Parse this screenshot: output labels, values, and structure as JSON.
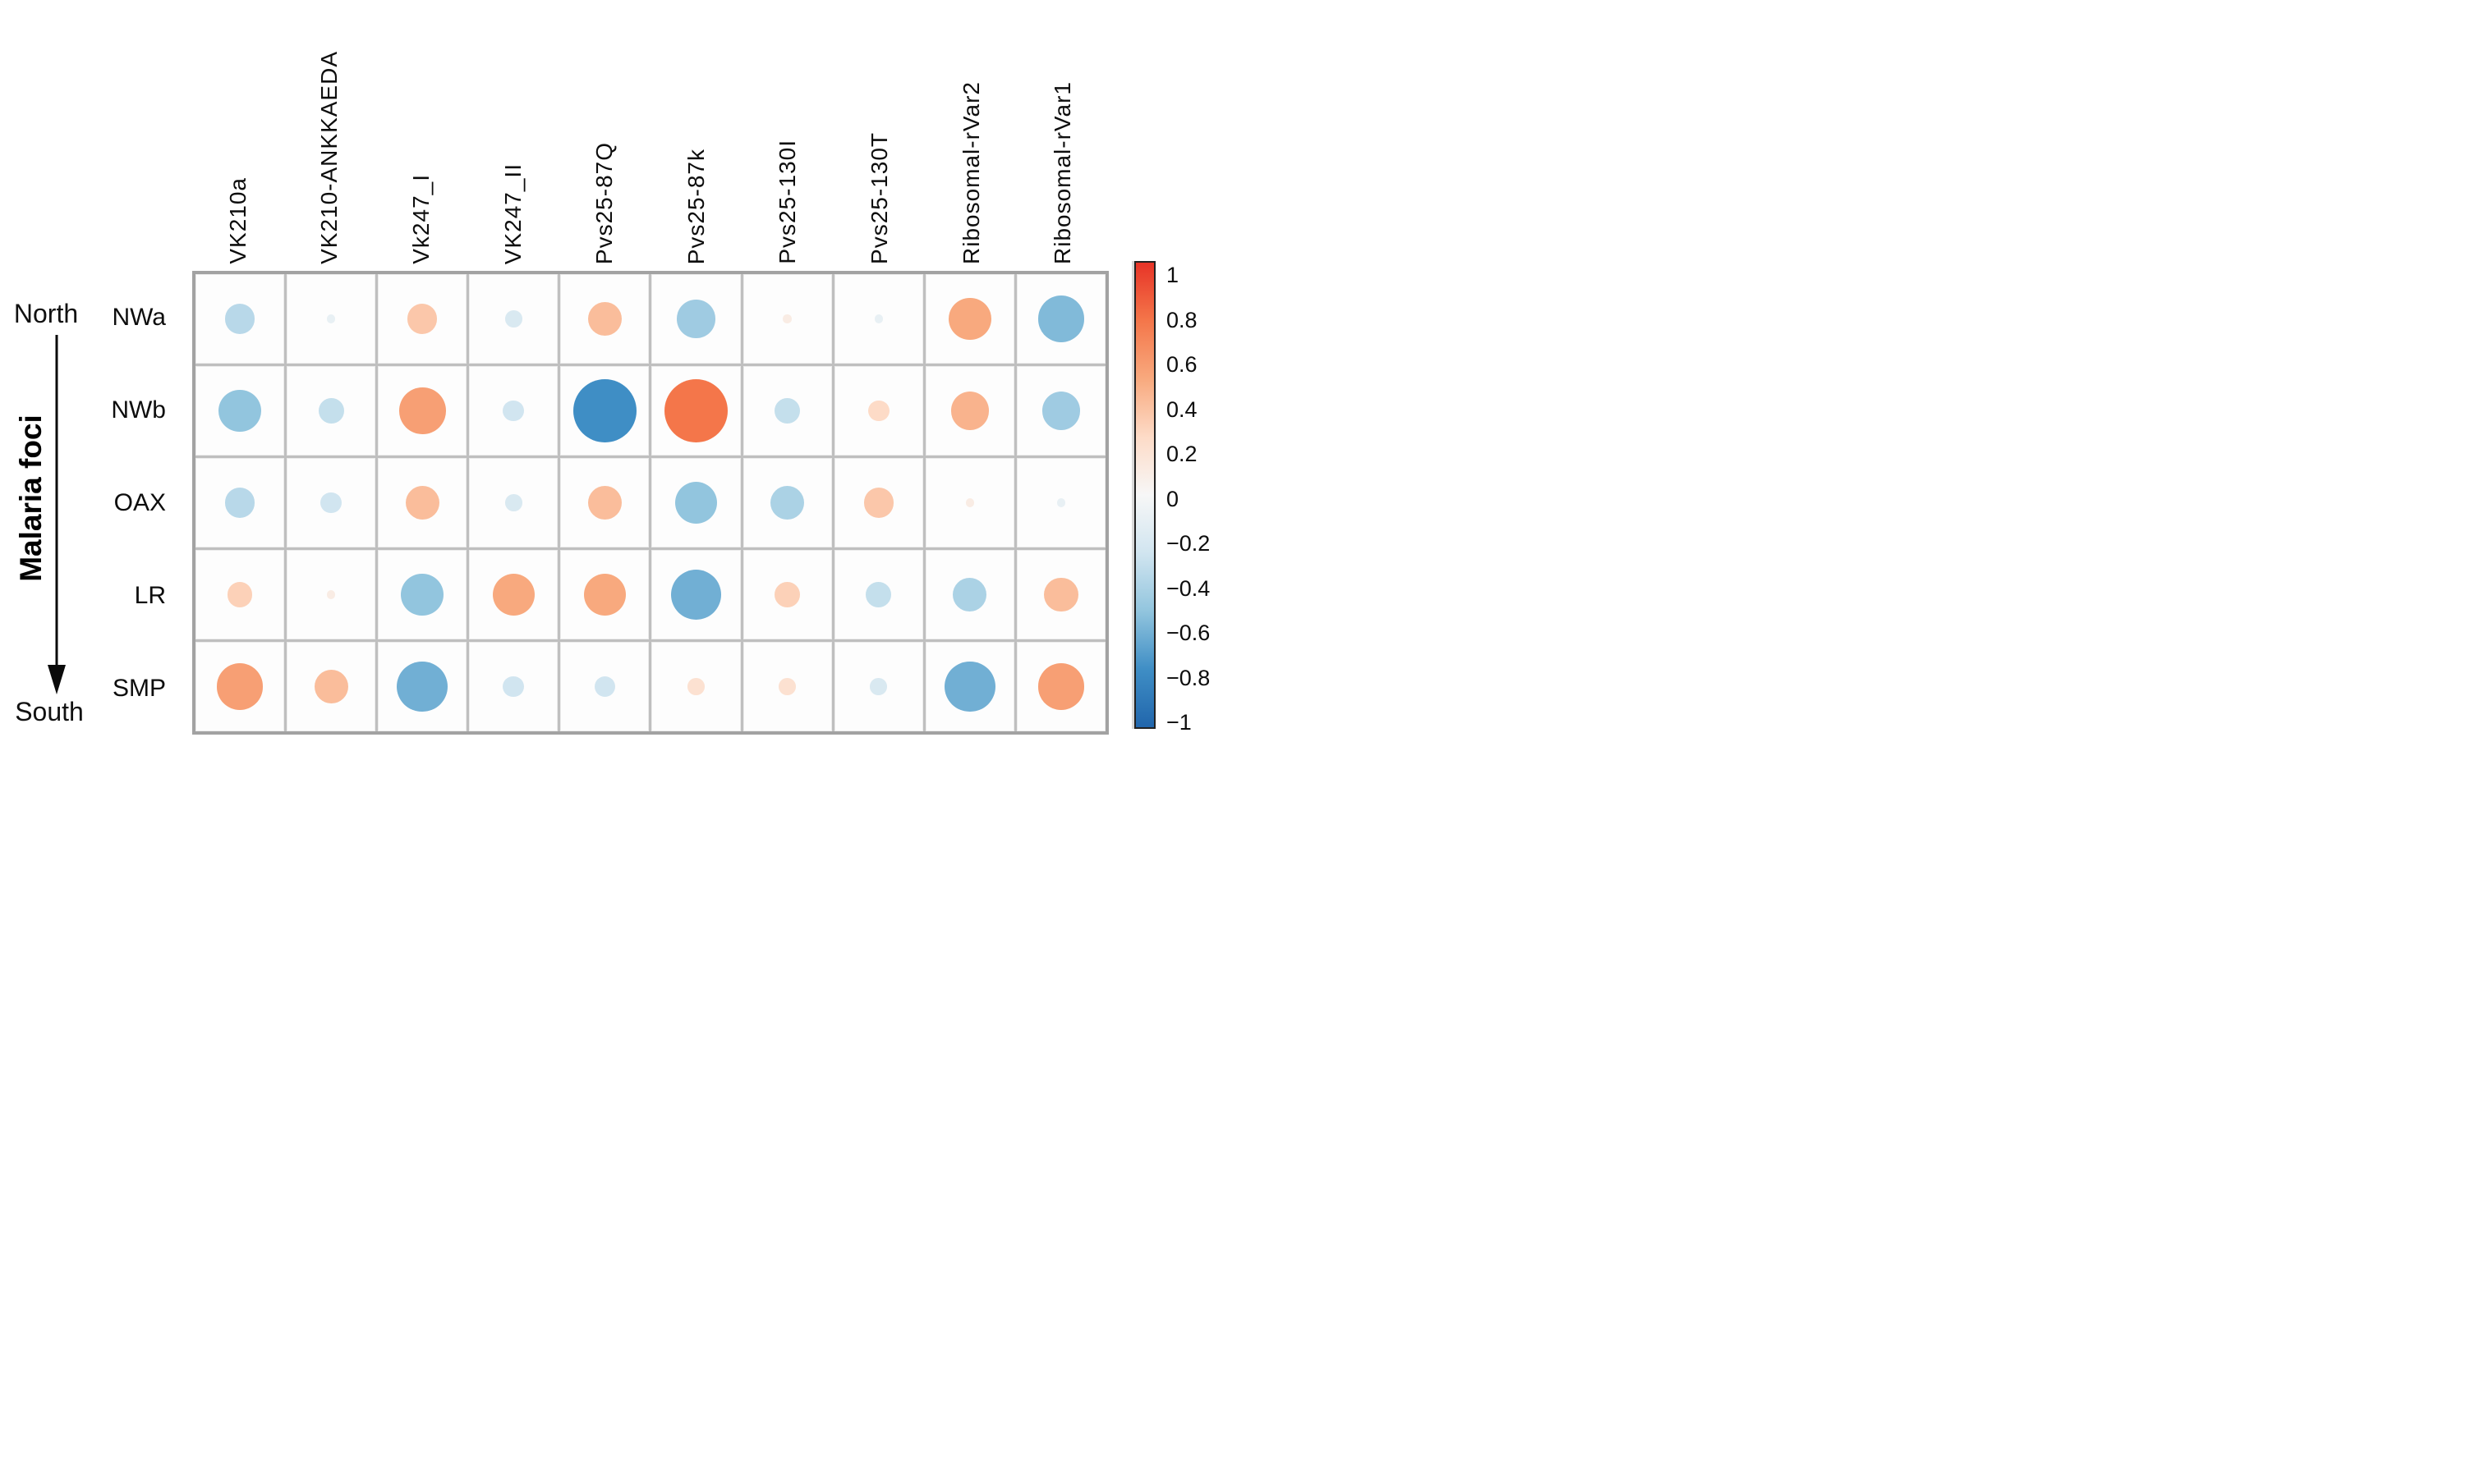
{
  "figure": {
    "left_axis": {
      "top_label": "North",
      "bottom_label": "South",
      "axis_title": "Malaria foci",
      "arrow_direction": "down"
    }
  },
  "chart_data": {
    "type": "heatmap",
    "style": "correlation bubble matrix (circle size and color encode correlation)",
    "rows": [
      "NWa",
      "NWb",
      "OAX",
      "LR",
      "SMP"
    ],
    "columns": [
      "VK210a",
      "VK210-ANKKAEDA",
      "Vk247_I",
      "VK247_II",
      "Pvs25-87Q",
      "Pvs25-87k",
      "Pvs25-130I",
      "Pvs25-130T",
      "Ribosomal-rVar2",
      "Ribosomal-rVar1"
    ],
    "values": [
      [
        -0.35,
        -0.1,
        0.35,
        -0.2,
        0.4,
        -0.45,
        0.1,
        -0.1,
        0.5,
        -0.55
      ],
      [
        -0.5,
        -0.3,
        0.55,
        -0.25,
        -0.75,
        0.75,
        -0.3,
        0.25,
        0.45,
        -0.45
      ],
      [
        -0.35,
        -0.25,
        0.4,
        -0.2,
        0.4,
        -0.5,
        -0.4,
        0.35,
        0.1,
        -0.1
      ],
      [
        0.3,
        0.1,
        -0.5,
        0.5,
        0.5,
        -0.6,
        0.3,
        -0.3,
        -0.4,
        0.4
      ],
      [
        0.55,
        0.4,
        -0.6,
        -0.25,
        -0.25,
        0.2,
        0.2,
        -0.2,
        -0.6,
        0.55
      ]
    ],
    "value_range": [
      -1,
      1
    ],
    "grid_on": true,
    "legend_position": "right",
    "palette_stops": [
      [
        -1.0,
        "#2166ac"
      ],
      [
        -0.75,
        "#3f8ec5"
      ],
      [
        -0.5,
        "#92c5de"
      ],
      [
        -0.25,
        "#d1e5f0"
      ],
      [
        0.0,
        "#f7f7f7"
      ],
      [
        0.25,
        "#fddbc7"
      ],
      [
        0.5,
        "#f8a97e"
      ],
      [
        0.75,
        "#f4764a"
      ],
      [
        1.0,
        "#e73427"
      ]
    ]
  },
  "legend": {
    "ticks": [
      "1",
      "0.8",
      "0.6",
      "0.4",
      "0.2",
      "0",
      "−0.2",
      "−0.4",
      "−0.6",
      "−0.8",
      "−1"
    ],
    "top_color": "#e73427",
    "bottom_color": "#2166ac",
    "border_color": "#222222"
  }
}
